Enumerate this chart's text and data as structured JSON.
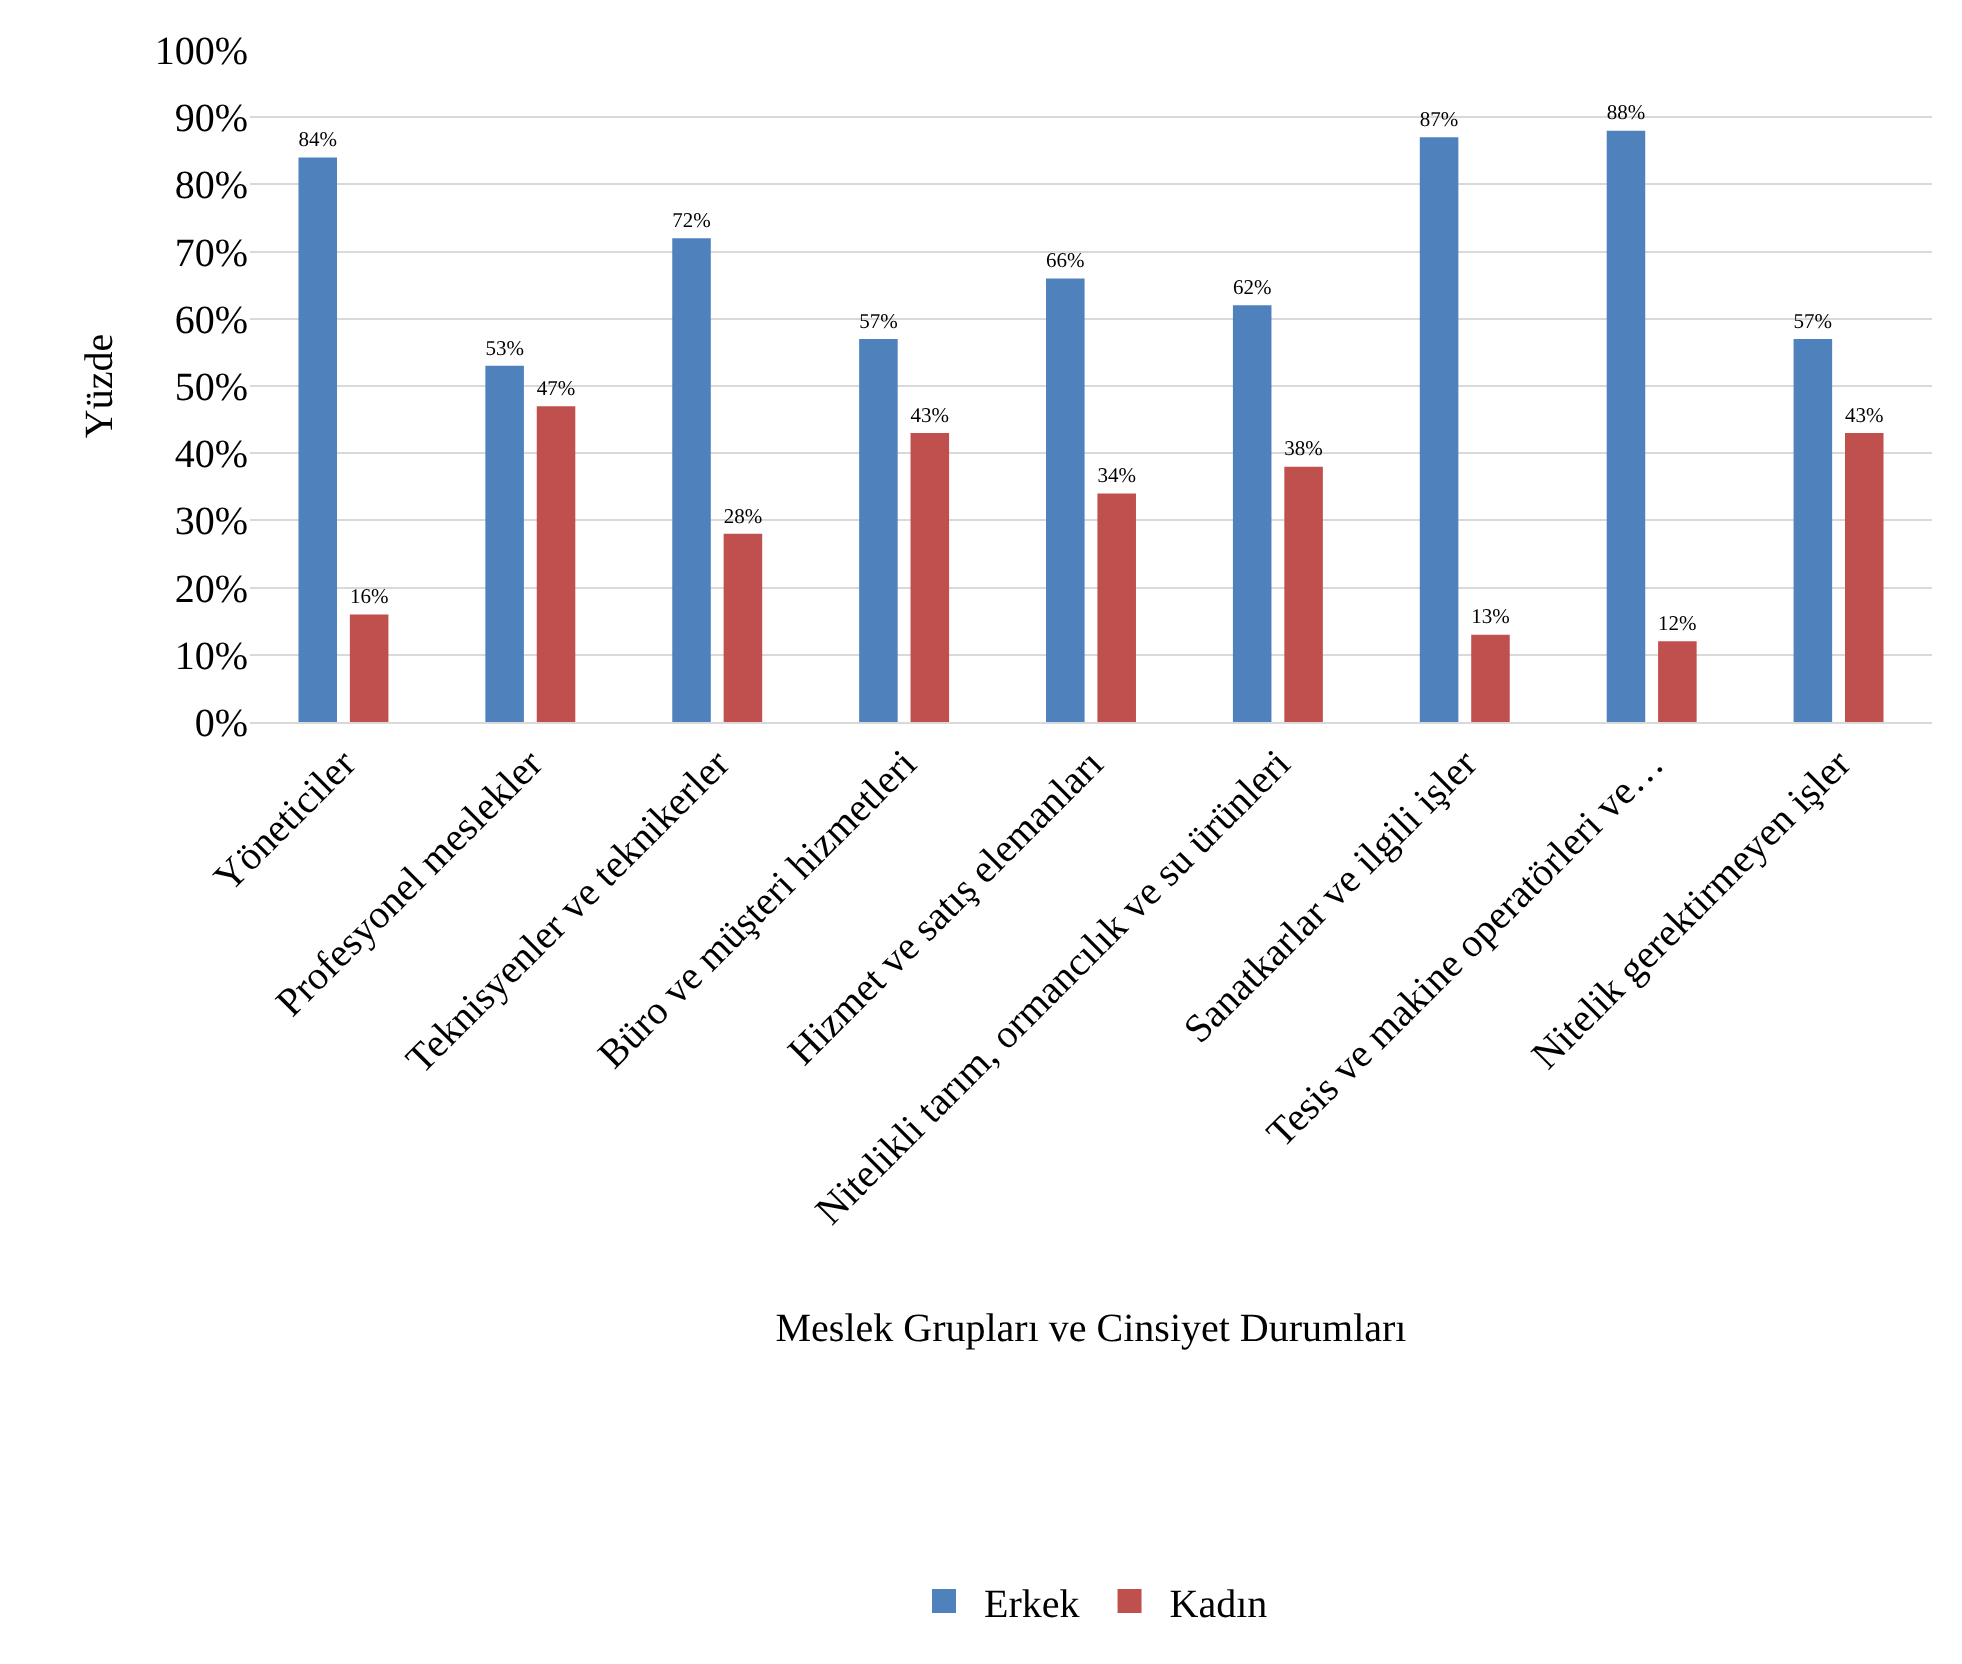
{
  "chart_data": {
    "type": "bar",
    "xlabel": "Meslek Grupları ve Cinsiyet Durumları",
    "ylabel": "Yüzde",
    "categories": [
      "Yöneticiler",
      "Profesyonel meslekler",
      "Teknisyenler ve teknikerler",
      "Büro ve müşteri hizmetleri",
      "Hizmet ve satış elemanları",
      "Nitelikli tarım, ormancılık ve su ürünleri",
      "Sanatkarlar ve ilgili işler",
      "Tesis ve makine operatörleri ve…",
      "Nitelik gerektirmeyen işler"
    ],
    "series": [
      {
        "name": "Erkek",
        "color": "#4f81bd",
        "values": [
          84,
          53,
          72,
          57,
          66,
          62,
          87,
          88,
          57
        ],
        "value_labels": [
          "84%",
          "53%",
          "72%",
          "57%",
          "66%",
          "62%",
          "87%",
          "88%",
          "57%"
        ]
      },
      {
        "name": "Kadın",
        "color": "#c0504d",
        "values": [
          16,
          47,
          28,
          43,
          34,
          38,
          13,
          12,
          43
        ],
        "value_labels": [
          "16%",
          "47%",
          "28%",
          "43%",
          "34%",
          "38%",
          "13%",
          "12%",
          "43%"
        ]
      }
    ],
    "ylim": [
      0,
      100
    ],
    "yticks": [
      {
        "value": 0,
        "label": "0%"
      },
      {
        "value": 10,
        "label": "10%"
      },
      {
        "value": 20,
        "label": "20%"
      },
      {
        "value": 30,
        "label": "30%"
      },
      {
        "value": 40,
        "label": "40%"
      },
      {
        "value": 50,
        "label": "50%"
      },
      {
        "value": 60,
        "label": "60%"
      },
      {
        "value": 70,
        "label": "70%"
      },
      {
        "value": 80,
        "label": "80%"
      },
      {
        "value": 90,
        "label": "90%"
      },
      {
        "value": 100,
        "label": "100%"
      }
    ],
    "grid": "y",
    "legend": "bottom"
  }
}
